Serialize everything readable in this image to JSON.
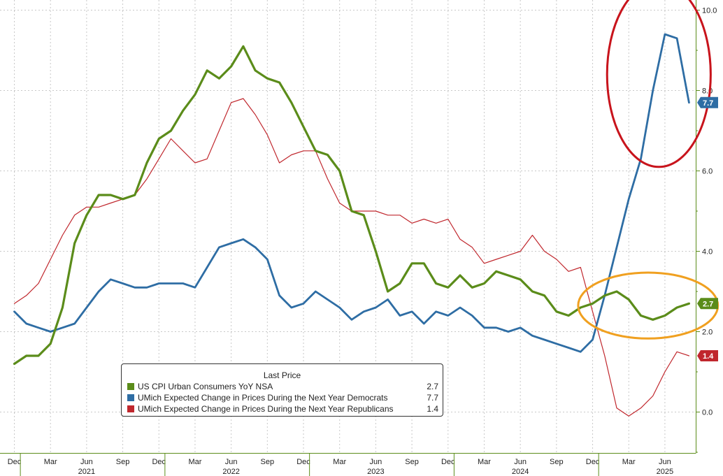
{
  "chart_data": {
    "type": "line",
    "title": "",
    "xlabel": "",
    "ylabel": "",
    "ylim": [
      -1.0,
      10.0
    ],
    "yticks": [
      0.0,
      2.0,
      4.0,
      6.0,
      8.0,
      10.0
    ],
    "ytick_labels": [
      "0.0",
      "2.0",
      "4.0",
      "6.0",
      "8.0",
      "10.0"
    ],
    "x_start": "2020-11",
    "x_end": "2025-08",
    "month_ticks": [
      {
        "label": "Dec",
        "month": 0
      },
      {
        "label": "Mar",
        "month": 3
      },
      {
        "label": "Jun",
        "month": 6
      },
      {
        "label": "Sep",
        "month": 9
      },
      {
        "label": "Dec",
        "month": 12
      },
      {
        "label": "Mar",
        "month": 15
      },
      {
        "label": "Jun",
        "month": 18
      },
      {
        "label": "Sep",
        "month": 21
      },
      {
        "label": "Dec",
        "month": 24
      },
      {
        "label": "Mar",
        "month": 27
      },
      {
        "label": "Jun",
        "month": 30
      },
      {
        "label": "Sep",
        "month": 33
      },
      {
        "label": "Dec",
        "month": 36
      },
      {
        "label": "Mar",
        "month": 39
      },
      {
        "label": "Jun",
        "month": 42
      },
      {
        "label": "Sep",
        "month": 45
      },
      {
        "label": "Dec",
        "month": 48
      },
      {
        "label": "Mar",
        "month": 51
      },
      {
        "label": "Jun",
        "month": 54
      }
    ],
    "year_labels": [
      {
        "label": "2021",
        "month": 6
      },
      {
        "label": "2022",
        "month": 18
      },
      {
        "label": "2023",
        "month": 30
      },
      {
        "label": "2024",
        "month": 42
      },
      {
        "label": "2025",
        "month": 54
      }
    ],
    "year_separators": [
      1,
      13,
      25,
      37,
      49
    ],
    "legend": {
      "title": "Last Price",
      "placement": "bottom-center"
    },
    "series": [
      {
        "name": "US CPI Urban Consumers YoY NSA",
        "last": "2.7",
        "color": "#5b8c1a",
        "width": 3.2,
        "start_month": 0,
        "values": [
          1.2,
          1.4,
          1.4,
          1.7,
          2.6,
          4.2,
          4.9,
          5.4,
          5.4,
          5.3,
          5.4,
          6.2,
          6.8,
          7.0,
          7.5,
          7.9,
          8.5,
          8.3,
          8.6,
          9.1,
          8.5,
          8.3,
          8.2,
          7.7,
          7.1,
          6.5,
          6.4,
          6.0,
          5.0,
          4.9,
          4.0,
          3.0,
          3.2,
          3.7,
          3.7,
          3.2,
          3.1,
          3.4,
          3.1,
          3.2,
          3.5,
          3.4,
          3.3,
          3.0,
          2.9,
          2.5,
          2.4,
          2.6,
          2.7,
          2.9,
          3.0,
          2.8,
          2.4,
          2.3,
          2.4,
          2.6,
          2.7
        ]
      },
      {
        "name": "UMich Expected Change in Prices During the Next Year Democrats",
        "last": "7.7",
        "color": "#2e6da4",
        "width": 2.8,
        "start_month": 0,
        "values": [
          2.5,
          2.2,
          2.1,
          2.0,
          2.1,
          2.2,
          2.6,
          3.0,
          3.3,
          3.2,
          3.1,
          3.1,
          3.2,
          3.2,
          3.2,
          3.1,
          3.6,
          4.1,
          4.2,
          4.3,
          4.1,
          3.8,
          2.9,
          2.6,
          2.7,
          3.0,
          2.8,
          2.6,
          2.3,
          2.5,
          2.6,
          2.8,
          2.4,
          2.5,
          2.2,
          2.5,
          2.4,
          2.6,
          2.4,
          2.1,
          2.1,
          2.0,
          2.1,
          1.9,
          1.8,
          1.7,
          1.6,
          1.5,
          1.8,
          2.9,
          4.1,
          5.3,
          6.3,
          8.0,
          9.4,
          9.3,
          7.7
        ]
      },
      {
        "name": "UMich Expected Change in Prices During the Next Year Republicans",
        "last": "1.4",
        "color": "#c0272d",
        "width": 1.2,
        "start_month": 0,
        "values": [
          2.7,
          2.9,
          3.2,
          3.8,
          4.4,
          4.9,
          5.1,
          5.1,
          5.2,
          5.3,
          5.4,
          5.8,
          6.3,
          6.8,
          6.5,
          6.2,
          6.3,
          7.0,
          7.7,
          7.8,
          7.4,
          6.9,
          6.2,
          6.4,
          6.5,
          6.5,
          5.8,
          5.2,
          5.0,
          5.0,
          5.0,
          4.9,
          4.9,
          4.7,
          4.8,
          4.7,
          4.8,
          4.3,
          4.1,
          3.7,
          3.8,
          3.9,
          4.0,
          4.4,
          4.0,
          3.8,
          3.5,
          3.6,
          2.5,
          1.4,
          0.1,
          -0.1,
          0.1,
          0.4,
          1.0,
          1.5,
          1.4
        ]
      }
    ],
    "annotations": [
      {
        "type": "circle",
        "color": "#c8141c",
        "around": "Democrats peak",
        "month_center": 53.5,
        "value_center": 8.4,
        "rx_months": 4.3,
        "ry_value": 2.3
      },
      {
        "type": "circle",
        "color": "#f0a020",
        "around": "CPI recent",
        "month_center": 52.6,
        "value_center": 2.65,
        "rx_months": 5.8,
        "ry_value": 0.82
      }
    ]
  }
}
